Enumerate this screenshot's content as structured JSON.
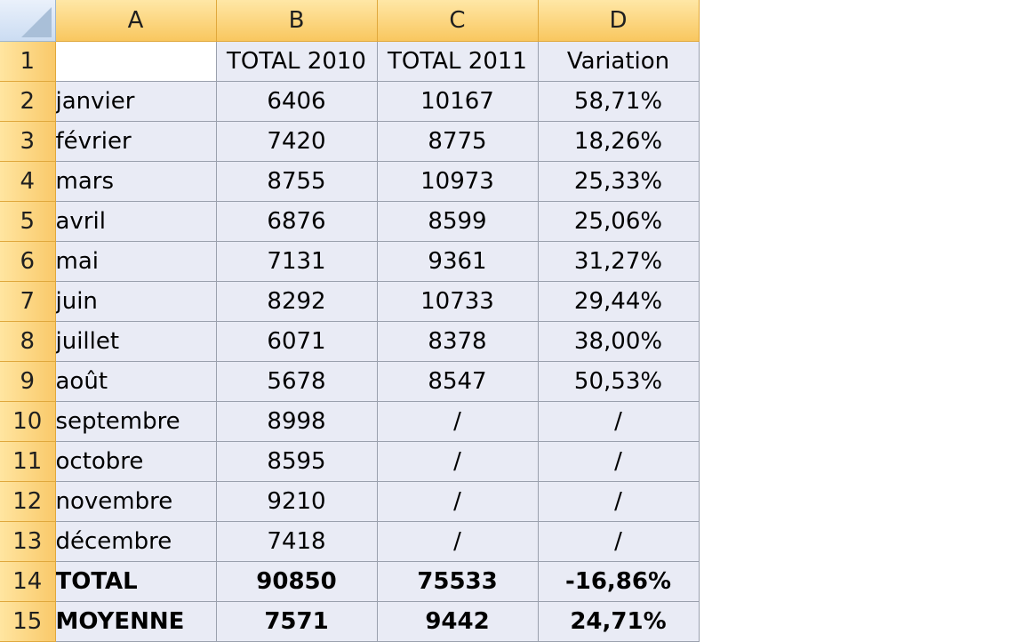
{
  "columns": [
    "A",
    "B",
    "C",
    "D"
  ],
  "row_numbers": [
    "1",
    "2",
    "3",
    "4",
    "5",
    "6",
    "7",
    "8",
    "9",
    "10",
    "11",
    "12",
    "13",
    "14",
    "15"
  ],
  "header_row": {
    "a": "",
    "b": "TOTAL 2010",
    "c": "TOTAL 2011",
    "d": "Variation"
  },
  "rows": [
    {
      "month": "janvier",
      "total_2010": "6406",
      "total_2011": "10167",
      "variation": "58,71%"
    },
    {
      "month": "février",
      "total_2010": "7420",
      "total_2011": "8775",
      "variation": "18,26%"
    },
    {
      "month": "mars",
      "total_2010": "8755",
      "total_2011": "10973",
      "variation": "25,33%"
    },
    {
      "month": "avril",
      "total_2010": "6876",
      "total_2011": "8599",
      "variation": "25,06%"
    },
    {
      "month": "mai",
      "total_2010": "7131",
      "total_2011": "9361",
      "variation": "31,27%"
    },
    {
      "month": "juin",
      "total_2010": "8292",
      "total_2011": "10733",
      "variation": "29,44%"
    },
    {
      "month": "juillet",
      "total_2010": "6071",
      "total_2011": "8378",
      "variation": "38,00%"
    },
    {
      "month": "août",
      "total_2010": "5678",
      "total_2011": "8547",
      "variation": "50,53%"
    },
    {
      "month": "septembre",
      "total_2010": "8998",
      "total_2011": "/",
      "variation": "/"
    },
    {
      "month": "octobre",
      "total_2010": "8595",
      "total_2011": "/",
      "variation": "/"
    },
    {
      "month": "novembre",
      "total_2010": "9210",
      "total_2011": "/",
      "variation": "/"
    },
    {
      "month": "décembre",
      "total_2010": "7418",
      "total_2011": "/",
      "variation": "/"
    }
  ],
  "total_row": {
    "label": "TOTAL",
    "total_2010": "90850",
    "total_2011": "75533",
    "variation": "-16,86%"
  },
  "average_row": {
    "label": "MOYENNE",
    "total_2010": "7571",
    "total_2011": "9442",
    "variation": "24,71%"
  },
  "colors": {
    "header_orange": "#f9c75f",
    "cell_fill": "#e9ebf5",
    "grid_line": "#9aa0ad",
    "corner_blue": "#cbdcf2"
  }
}
